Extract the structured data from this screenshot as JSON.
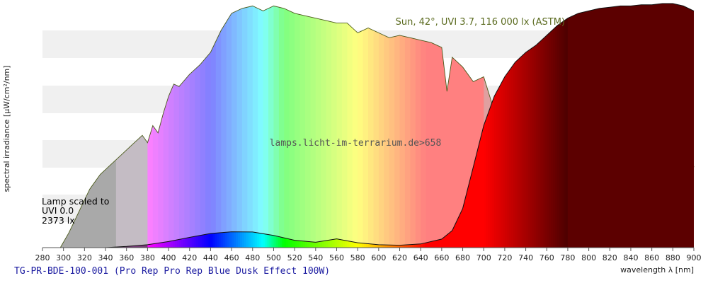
{
  "chart_data": {
    "type": "area",
    "xlabel": "wavelength λ [nm]",
    "ylabel": "spectral irradiance [µW/cm²/nm]",
    "xlim": [
      280,
      900
    ],
    "x_ticks": [
      280,
      300,
      320,
      340,
      360,
      380,
      400,
      420,
      440,
      460,
      480,
      500,
      520,
      540,
      560,
      580,
      600,
      620,
      640,
      660,
      680,
      700,
      720,
      740,
      760,
      780,
      800,
      820,
      840,
      860,
      880,
      900
    ],
    "y_ticks_shown": false,
    "grid": "horizontal bands",
    "sun_caption": "Sun, 42°, UVI 3.7, 116 000 lx (ASTM)",
    "watermark": "lamps.licht-im-terrarium.de>658",
    "lamp_label_lines": [
      "Lamp scaled to",
      "UVI 0.0",
      "2373 lx"
    ],
    "series": [
      {
        "role": "sun",
        "x": [
          297,
          305,
          315,
          325,
          335,
          345,
          355,
          365,
          375,
          380,
          385,
          390,
          395,
          400,
          405,
          410,
          420,
          430,
          440,
          450,
          460,
          470,
          480,
          490,
          500,
          510,
          520,
          530,
          540,
          550,
          560,
          570,
          580,
          590,
          600,
          610,
          620,
          630,
          640,
          650,
          660,
          665,
          670,
          680,
          690,
          700,
          710,
          720,
          730,
          740,
          750,
          760,
          763,
          766,
          770,
          780,
          790,
          800,
          810,
          820,
          830,
          840,
          850,
          860,
          870,
          880,
          890,
          895,
          900
        ],
        "y": [
          0,
          6,
          15,
          24,
          30,
          34,
          38,
          42,
          46,
          43,
          50,
          47,
          55,
          62,
          67,
          66,
          71,
          75,
          80,
          89,
          96,
          98,
          99,
          97,
          99,
          98,
          96,
          95,
          94,
          93,
          92,
          92,
          88,
          90,
          88,
          86,
          87,
          86,
          85,
          84,
          82,
          64,
          78,
          74,
          68,
          70,
          56,
          62,
          64,
          64,
          64,
          60,
          10,
          50,
          62,
          60,
          60,
          58,
          56,
          54,
          52,
          52,
          50,
          50,
          50,
          48,
          47,
          42,
          33
        ]
      },
      {
        "role": "lamp",
        "x": [
          340,
          360,
          380,
          400,
          420,
          440,
          460,
          480,
          500,
          520,
          540,
          560,
          580,
          600,
          620,
          640,
          660,
          670,
          680,
          690,
          700,
          710,
          720,
          730,
          740,
          750,
          760,
          770,
          780,
          790,
          800,
          810,
          820,
          830,
          840,
          850,
          860,
          870,
          880,
          890,
          900
        ],
        "y": [
          0,
          0.5,
          1.2,
          2.5,
          4.2,
          5.8,
          6.5,
          6.4,
          5.0,
          3.0,
          2.2,
          3.6,
          2.0,
          1.2,
          1.0,
          1.5,
          3.5,
          7,
          16,
          33,
          50,
          62,
          70,
          76,
          80,
          83,
          87,
          91,
          94,
          96,
          97,
          98,
          98.5,
          99,
          99,
          99.5,
          99.5,
          100,
          100,
          99,
          97
        ]
      }
    ]
  }
}
